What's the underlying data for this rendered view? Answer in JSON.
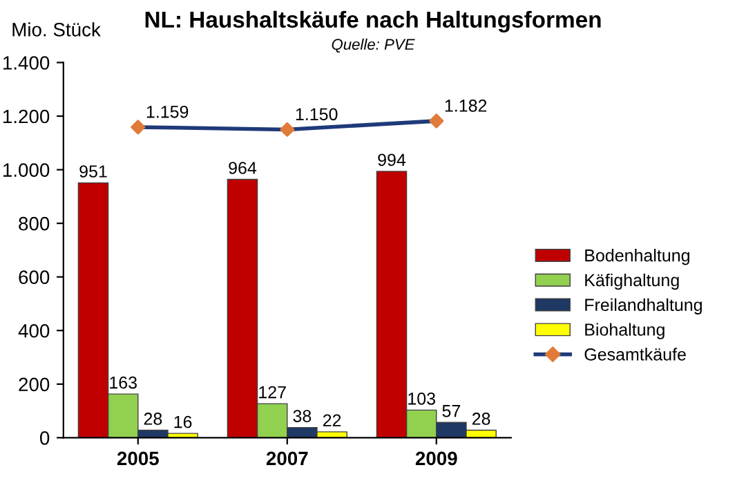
{
  "chart_data": {
    "type": "bar",
    "title": "NL: Haushaltskäufe nach Haltungsformen",
    "subtitle": "Quelle: PVE",
    "ylabel": "Mio. Stück",
    "categories": [
      "2005",
      "2007",
      "2009"
    ],
    "series": [
      {
        "name": "Bodenhaltung",
        "color": "#c00000",
        "values": [
          951,
          964,
          994
        ],
        "value_labels": [
          "951",
          "964",
          "994"
        ]
      },
      {
        "name": "Käfighaltung",
        "color": "#92d050",
        "values": [
          163,
          127,
          103
        ],
        "value_labels": [
          "163",
          "127",
          "103"
        ]
      },
      {
        "name": "Freilandhaltung",
        "color": "#1f3864",
        "values": [
          28,
          38,
          57
        ],
        "value_labels": [
          "28",
          "38",
          "57"
        ]
      },
      {
        "name": "Biohaltung",
        "color": "#ffff00",
        "values": [
          16,
          22,
          28
        ],
        "value_labels": [
          "16",
          "22",
          "28"
        ]
      },
      {
        "name": "Gesamtkäufe",
        "type": "line",
        "color": "#1f3a7a",
        "colors": [
          "#e07b39",
          "#e07b39",
          "#e07b39"
        ],
        "marker": "diamond",
        "values": [
          1159,
          1150,
          1182
        ],
        "value_labels": [
          "1.159",
          "1.150",
          "1.182"
        ]
      }
    ],
    "ylim": [
      0,
      1400
    ],
    "yticks": [
      0,
      200,
      400,
      600,
      800,
      {
        "value": 1000,
        "label": "1.000"
      },
      {
        "value": 1200,
        "label": "1.200"
      },
      {
        "value": 1400,
        "label": "1.400"
      }
    ],
    "grid": false,
    "legend": "right"
  }
}
